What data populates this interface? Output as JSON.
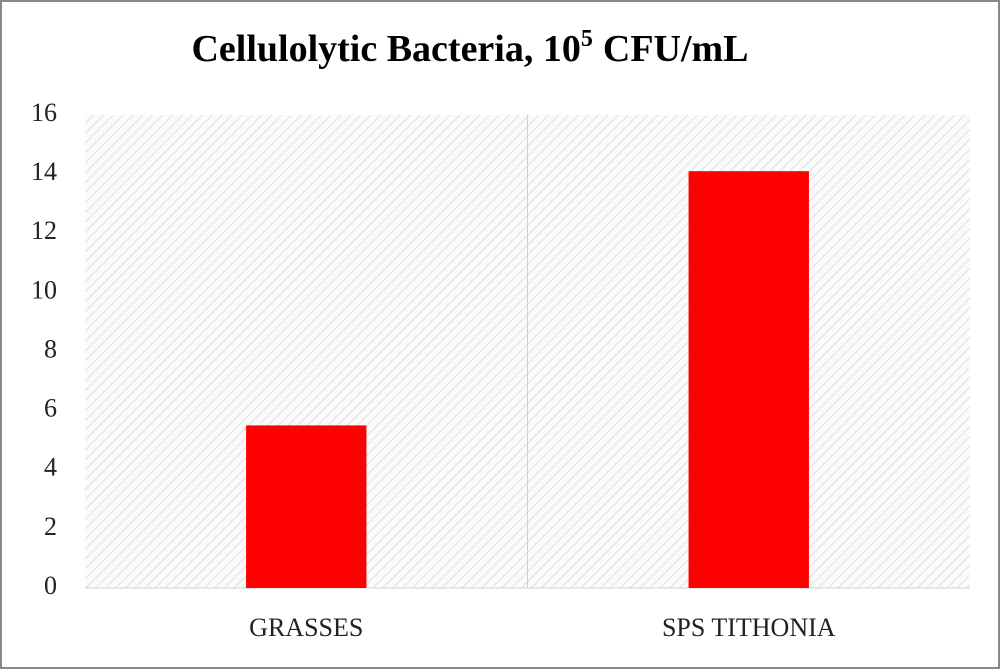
{
  "chart_data": {
    "type": "bar",
    "title": [
      "Cellulolytic Bacteria, 10",
      "5",
      "CFU/mL"
    ],
    "categories": [
      "GRASSES",
      "SPS TITHONIA"
    ],
    "values": [
      5.5,
      14.1
    ],
    "color": "#ff0000",
    "ylim": [
      0,
      16
    ],
    "yticks": [
      0,
      2,
      4,
      6,
      8,
      10,
      12,
      14,
      16
    ],
    "grid": false
  }
}
